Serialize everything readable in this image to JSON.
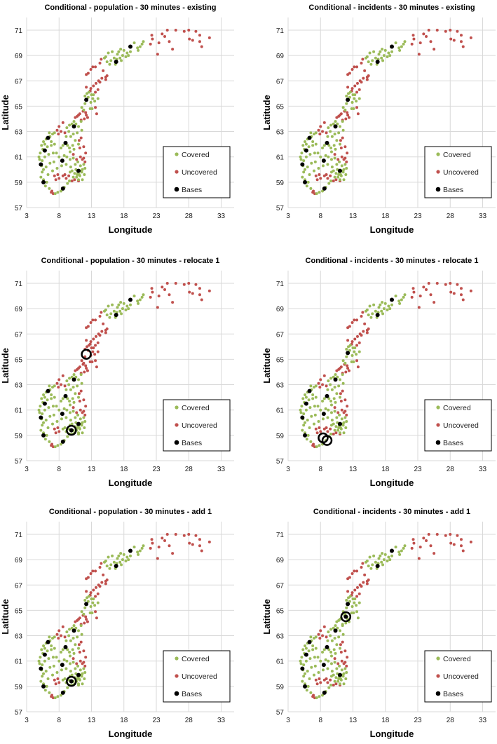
{
  "chart_data": {
    "type": "scatter",
    "xlabel": "Longitude",
    "ylabel": "Latitude",
    "xlim": [
      3,
      35
    ],
    "ylim": [
      57,
      72
    ],
    "xticks": [
      3,
      8,
      13,
      18,
      23,
      28,
      33
    ],
    "yticks": [
      57,
      59,
      61,
      63,
      65,
      67,
      69,
      71
    ],
    "grid": true,
    "legend_position": "bottom-right",
    "legend": [
      "Covered",
      "Uncovered",
      "Bases"
    ],
    "colors": {
      "Covered": "#9bbb59",
      "Uncovered": "#c0504d",
      "Bases": "#000000"
    },
    "point_groups": {
      "far_north": [
        [
          22.3,
          70.6
        ],
        [
          22.4,
          70.3
        ],
        [
          22.1,
          69.9
        ],
        [
          23.2,
          69.1
        ],
        [
          23.4,
          70.0
        ],
        [
          23.9,
          70.7
        ],
        [
          24.3,
          70.5
        ],
        [
          24.7,
          71.0
        ],
        [
          25.0,
          70.1
        ],
        [
          25.5,
          69.5
        ],
        [
          26.0,
          71.0
        ],
        [
          27.3,
          70.9
        ],
        [
          28.0,
          71.0
        ],
        [
          28.1,
          70.3
        ],
        [
          28.6,
          70.2
        ],
        [
          29.1,
          70.9
        ],
        [
          29.7,
          70.6
        ],
        [
          29.7,
          70.1
        ],
        [
          30.0,
          69.7
        ],
        [
          31.2,
          70.4
        ]
      ],
      "north_coast": [
        [
          19.6,
          70.0
        ],
        [
          20.1,
          69.6
        ],
        [
          20.5,
          69.7
        ],
        [
          20.8,
          69.9
        ],
        [
          21.0,
          70.1
        ],
        [
          20.2,
          69.4
        ],
        [
          19.0,
          69.3
        ],
        [
          18.5,
          69.2
        ],
        [
          18.0,
          69.4
        ],
        [
          17.5,
          69.5
        ],
        [
          17.2,
          69.3
        ],
        [
          17.8,
          69.0
        ],
        [
          17.4,
          68.8
        ],
        [
          16.9,
          68.7
        ],
        [
          16.5,
          68.8
        ],
        [
          16.0,
          68.6
        ],
        [
          15.8,
          68.3
        ],
        [
          15.2,
          68.9
        ],
        [
          15.6,
          69.2
        ],
        [
          16.2,
          69.3
        ],
        [
          17.0,
          69.1
        ],
        [
          18.3,
          68.9
        ],
        [
          16.7,
          68.3
        ],
        [
          15.4,
          68.5
        ],
        [
          15.0,
          68.8
        ],
        [
          18.7,
          69.0
        ],
        [
          17.6,
          68.6
        ]
      ],
      "nordland": [
        [
          14.5,
          68.7
        ],
        [
          14.3,
          68.4
        ],
        [
          13.6,
          68.1
        ],
        [
          13.2,
          68.1
        ],
        [
          12.9,
          67.9
        ],
        [
          12.5,
          67.6
        ],
        [
          12.2,
          67.5
        ],
        [
          14.8,
          67.8
        ],
        [
          15.4,
          67.4
        ],
        [
          15.2,
          67.3
        ],
        [
          14.6,
          67.2
        ],
        [
          14.1,
          67.0
        ],
        [
          13.7,
          66.8
        ],
        [
          13.3,
          66.6
        ],
        [
          12.9,
          66.4
        ],
        [
          12.2,
          66.5
        ],
        [
          12.8,
          66.2
        ],
        [
          13.6,
          66.1
        ],
        [
          14.0,
          66.3
        ],
        [
          15.2,
          67.1
        ],
        [
          14.3,
          66.9
        ]
      ],
      "helgeland": [
        [
          12.3,
          66.0
        ],
        [
          12.6,
          66.1
        ],
        [
          12.0,
          65.8
        ],
        [
          13.0,
          65.9
        ],
        [
          13.2,
          65.6
        ],
        [
          12.9,
          65.3
        ],
        [
          13.5,
          65.4
        ],
        [
          14.0,
          65.6
        ],
        [
          12.0,
          65.2
        ],
        [
          11.5,
          64.9
        ],
        [
          11.8,
          64.7
        ],
        [
          12.8,
          64.8
        ],
        [
          13.1,
          64.8
        ],
        [
          12.5,
          65.7
        ],
        [
          13.3,
          65.9
        ]
      ],
      "namdalen": [
        [
          11.7,
          64.6
        ],
        [
          11.2,
          64.4
        ],
        [
          10.8,
          64.2
        ],
        [
          10.5,
          64.1
        ],
        [
          11.4,
          63.9
        ],
        [
          12.1,
          64.5
        ],
        [
          12.2,
          64.3
        ],
        [
          11.9,
          64.0
        ],
        [
          13.6,
          64.9
        ],
        [
          13.8,
          64.4
        ],
        [
          11.0,
          64.3
        ],
        [
          12.4,
          64.1
        ]
      ],
      "central": [
        [
          10.3,
          63.8
        ],
        [
          10.0,
          63.6
        ],
        [
          9.6,
          63.5
        ],
        [
          9.2,
          63.3
        ],
        [
          9.5,
          63.0
        ],
        [
          10.6,
          63.6
        ],
        [
          11.0,
          63.4
        ],
        [
          11.4,
          63.8
        ],
        [
          11.5,
          63.1
        ],
        [
          10.8,
          62.9
        ],
        [
          10.2,
          62.8
        ],
        [
          9.8,
          62.6
        ],
        [
          9.1,
          62.6
        ],
        [
          10.5,
          62.3
        ],
        [
          11.0,
          62.0
        ],
        [
          10.1,
          61.9
        ],
        [
          9.6,
          61.7
        ],
        [
          9.3,
          61.9
        ],
        [
          8.6,
          61.9
        ],
        [
          8.3,
          61.7
        ],
        [
          9.7,
          61.4
        ],
        [
          10.3,
          61.6
        ],
        [
          8.8,
          61.1
        ],
        [
          9.2,
          61.0
        ],
        [
          9.7,
          60.8
        ],
        [
          10.2,
          60.9
        ],
        [
          8.4,
          60.3
        ],
        [
          9.1,
          60.4
        ],
        [
          9.8,
          60.2
        ],
        [
          10.5,
          60.4
        ],
        [
          10.9,
          60.6
        ],
        [
          11.3,
          60.3
        ],
        [
          11.8,
          60.4
        ],
        [
          12.0,
          60.1
        ],
        [
          11.5,
          59.8
        ],
        [
          11.2,
          59.5
        ],
        [
          10.8,
          59.6
        ],
        [
          10.4,
          59.7
        ],
        [
          10.0,
          59.9
        ],
        [
          10.7,
          59.4
        ],
        [
          11.0,
          59.2
        ],
        [
          11.6,
          59.2
        ],
        [
          11.9,
          59.6
        ],
        [
          10.2,
          59.4
        ],
        [
          9.7,
          59.8
        ],
        [
          11.3,
          59.9
        ],
        [
          10.9,
          59.8
        ],
        [
          11.1,
          59.6
        ],
        [
          10.6,
          60.0
        ],
        [
          11.6,
          60.0
        ]
      ],
      "west": [
        [
          5.0,
          60.8
        ],
        [
          5.1,
          61.3
        ],
        [
          5.3,
          61.9
        ],
        [
          5.6,
          62.2
        ],
        [
          6.0,
          62.4
        ],
        [
          6.6,
          62.6
        ],
        [
          7.0,
          62.8
        ],
        [
          7.3,
          62.9
        ],
        [
          5.5,
          61.6
        ],
        [
          6.2,
          61.8
        ],
        [
          6.8,
          61.9
        ],
        [
          7.3,
          62.0
        ],
        [
          5.8,
          61.0
        ],
        [
          6.4,
          61.2
        ],
        [
          7.1,
          61.3
        ],
        [
          5.3,
          60.3
        ],
        [
          5.6,
          60.0
        ],
        [
          6.0,
          60.2
        ],
        [
          6.6,
          60.5
        ],
        [
          7.2,
          60.6
        ],
        [
          5.2,
          59.4
        ],
        [
          5.6,
          59.2
        ],
        [
          6.1,
          59.0
        ],
        [
          5.9,
          58.7
        ],
        [
          6.5,
          58.5
        ],
        [
          7.4,
          58.1
        ],
        [
          7.8,
          58.2
        ],
        [
          8.3,
          58.3
        ],
        [
          8.8,
          58.6
        ],
        [
          9.3,
          58.9
        ],
        [
          9.6,
          59.1
        ],
        [
          6.3,
          59.6
        ],
        [
          7.0,
          59.9
        ],
        [
          7.7,
          60.1
        ],
        [
          8.0,
          61.0
        ],
        [
          7.6,
          61.3
        ],
        [
          6.8,
          62.2
        ],
        [
          5.4,
          60.7
        ],
        [
          5.8,
          62.0
        ],
        [
          6.5,
          62.9
        ],
        [
          4.9,
          61.0
        ],
        [
          5.4,
          59.8
        ]
      ],
      "inland": [
        [
          7.7,
          63.1
        ],
        [
          8.0,
          63.4
        ],
        [
          8.3,
          63.0
        ],
        [
          7.9,
          62.8
        ],
        [
          8.6,
          63.7
        ],
        [
          8.9,
          62.9
        ],
        [
          11.4,
          62.5
        ],
        [
          11.1,
          62.3
        ],
        [
          11.8,
          61.8
        ],
        [
          11.2,
          61.7
        ],
        [
          10.2,
          61.2
        ],
        [
          11.3,
          61.0
        ],
        [
          10.7,
          60.8
        ],
        [
          11.6,
          60.8
        ],
        [
          12.1,
          61.3
        ],
        [
          12.0,
          60.6
        ],
        [
          11.8,
          60.9
        ]
      ],
      "south_west": [
        [
          7.3,
          59.5
        ],
        [
          7.8,
          59.6
        ],
        [
          8.0,
          59.3
        ],
        [
          7.5,
          59.2
        ],
        [
          6.9,
          58.3
        ],
        [
          7.1,
          58.1
        ],
        [
          6.8,
          58.2
        ]
      ],
      "south_center": [
        [
          8.6,
          59.5
        ],
        [
          8.9,
          59.6
        ],
        [
          9.1,
          59.3
        ],
        [
          9.5,
          59.5
        ],
        [
          10.0,
          59.1
        ],
        [
          10.4,
          59.2
        ],
        [
          11.0,
          59.1
        ]
      ]
    },
    "panels": [
      {
        "title": "Conditional - population - 30 minutes - existing",
        "covered_groups": [
          "north_coast",
          "helgeland",
          "central",
          "west"
        ],
        "uncovered_groups": [
          "far_north",
          "nordland",
          "namdalen",
          "inland",
          "south_west",
          "south_center"
        ],
        "bases": [
          [
            5.2,
            60.4
          ],
          [
            5.6,
            59.0
          ],
          [
            5.8,
            61.5
          ],
          [
            6.3,
            62.5
          ],
          [
            8.6,
            58.5
          ],
          [
            8.5,
            60.7
          ],
          [
            9.0,
            62.1
          ],
          [
            10.3,
            63.4
          ],
          [
            11.0,
            59.9
          ],
          [
            12.2,
            65.5
          ],
          [
            16.8,
            68.5
          ],
          [
            19.0,
            69.7
          ]
        ],
        "highlighted": []
      },
      {
        "title": "Conditional - incidents - 30 minutes - existing",
        "covered_groups": [
          "north_coast",
          "helgeland",
          "central",
          "west"
        ],
        "uncovered_groups": [
          "far_north",
          "nordland",
          "namdalen",
          "inland",
          "south_west",
          "south_center"
        ],
        "bases": [
          [
            5.2,
            60.4
          ],
          [
            5.6,
            59.0
          ],
          [
            5.8,
            61.5
          ],
          [
            6.3,
            62.5
          ],
          [
            8.6,
            58.5
          ],
          [
            8.5,
            60.7
          ],
          [
            9.0,
            62.1
          ],
          [
            10.3,
            63.4
          ],
          [
            11.0,
            59.9
          ],
          [
            12.2,
            65.5
          ],
          [
            16.8,
            68.5
          ],
          [
            19.0,
            69.7
          ]
        ],
        "highlighted": []
      },
      {
        "title": "Conditional - population - 30 minutes - relocate 1",
        "covered_groups": [
          "north_coast",
          "central",
          "west",
          "south_center"
        ],
        "uncovered_groups": [
          "far_north",
          "nordland",
          "helgeland",
          "namdalen",
          "inland",
          "south_west"
        ],
        "bases": [
          [
            5.2,
            60.4
          ],
          [
            5.6,
            59.0
          ],
          [
            5.8,
            61.5
          ],
          [
            6.3,
            62.5
          ],
          [
            8.6,
            58.5
          ],
          [
            8.5,
            60.7
          ],
          [
            9.0,
            62.1
          ],
          [
            10.3,
            63.4
          ],
          [
            11.0,
            59.9
          ],
          [
            9.9,
            59.4
          ],
          [
            16.8,
            68.5
          ],
          [
            19.0,
            69.7
          ]
        ],
        "highlighted": [
          [
            12.2,
            65.4
          ],
          [
            9.9,
            59.4
          ]
        ]
      },
      {
        "title": "Conditional - incidents - 30 minutes - relocate 1",
        "covered_groups": [
          "north_coast",
          "helgeland",
          "central",
          "west"
        ],
        "uncovered_groups": [
          "far_north",
          "nordland",
          "namdalen",
          "inland",
          "south_west",
          "south_center"
        ],
        "bases": [
          [
            5.2,
            60.4
          ],
          [
            5.6,
            59.0
          ],
          [
            5.8,
            61.5
          ],
          [
            6.3,
            62.5
          ],
          [
            8.5,
            60.7
          ],
          [
            9.0,
            62.1
          ],
          [
            10.3,
            63.4
          ],
          [
            11.0,
            59.9
          ],
          [
            12.2,
            65.5
          ],
          [
            16.8,
            68.5
          ],
          [
            19.0,
            69.7
          ]
        ],
        "highlighted": [
          [
            8.4,
            58.8
          ],
          [
            9.0,
            58.6
          ]
        ]
      },
      {
        "title": "Conditional - population - 30 minutes - add 1",
        "covered_groups": [
          "north_coast",
          "helgeland",
          "central",
          "west",
          "south_center"
        ],
        "uncovered_groups": [
          "far_north",
          "nordland",
          "namdalen",
          "inland",
          "south_west"
        ],
        "bases": [
          [
            5.2,
            60.4
          ],
          [
            5.6,
            59.0
          ],
          [
            5.8,
            61.5
          ],
          [
            6.3,
            62.5
          ],
          [
            8.6,
            58.5
          ],
          [
            8.5,
            60.7
          ],
          [
            9.0,
            62.1
          ],
          [
            10.3,
            63.4
          ],
          [
            11.0,
            59.9
          ],
          [
            9.9,
            59.4
          ],
          [
            12.2,
            65.5
          ],
          [
            16.8,
            68.5
          ],
          [
            19.0,
            69.7
          ]
        ],
        "highlighted": [
          [
            9.9,
            59.4
          ]
        ]
      },
      {
        "title": "Conditional - incidents - 30 minutes - add 1",
        "covered_groups": [
          "north_coast",
          "helgeland",
          "namdalen",
          "central",
          "west"
        ],
        "uncovered_groups": [
          "far_north",
          "nordland",
          "inland",
          "south_west",
          "south_center"
        ],
        "bases": [
          [
            5.2,
            60.4
          ],
          [
            5.6,
            59.0
          ],
          [
            5.8,
            61.5
          ],
          [
            6.3,
            62.5
          ],
          [
            8.6,
            58.5
          ],
          [
            8.5,
            60.7
          ],
          [
            9.0,
            62.1
          ],
          [
            10.3,
            63.4
          ],
          [
            11.0,
            59.9
          ],
          [
            11.9,
            64.5
          ],
          [
            12.2,
            65.5
          ],
          [
            16.8,
            68.5
          ],
          [
            19.0,
            69.7
          ]
        ],
        "highlighted": [
          [
            11.9,
            64.5
          ]
        ]
      }
    ]
  }
}
